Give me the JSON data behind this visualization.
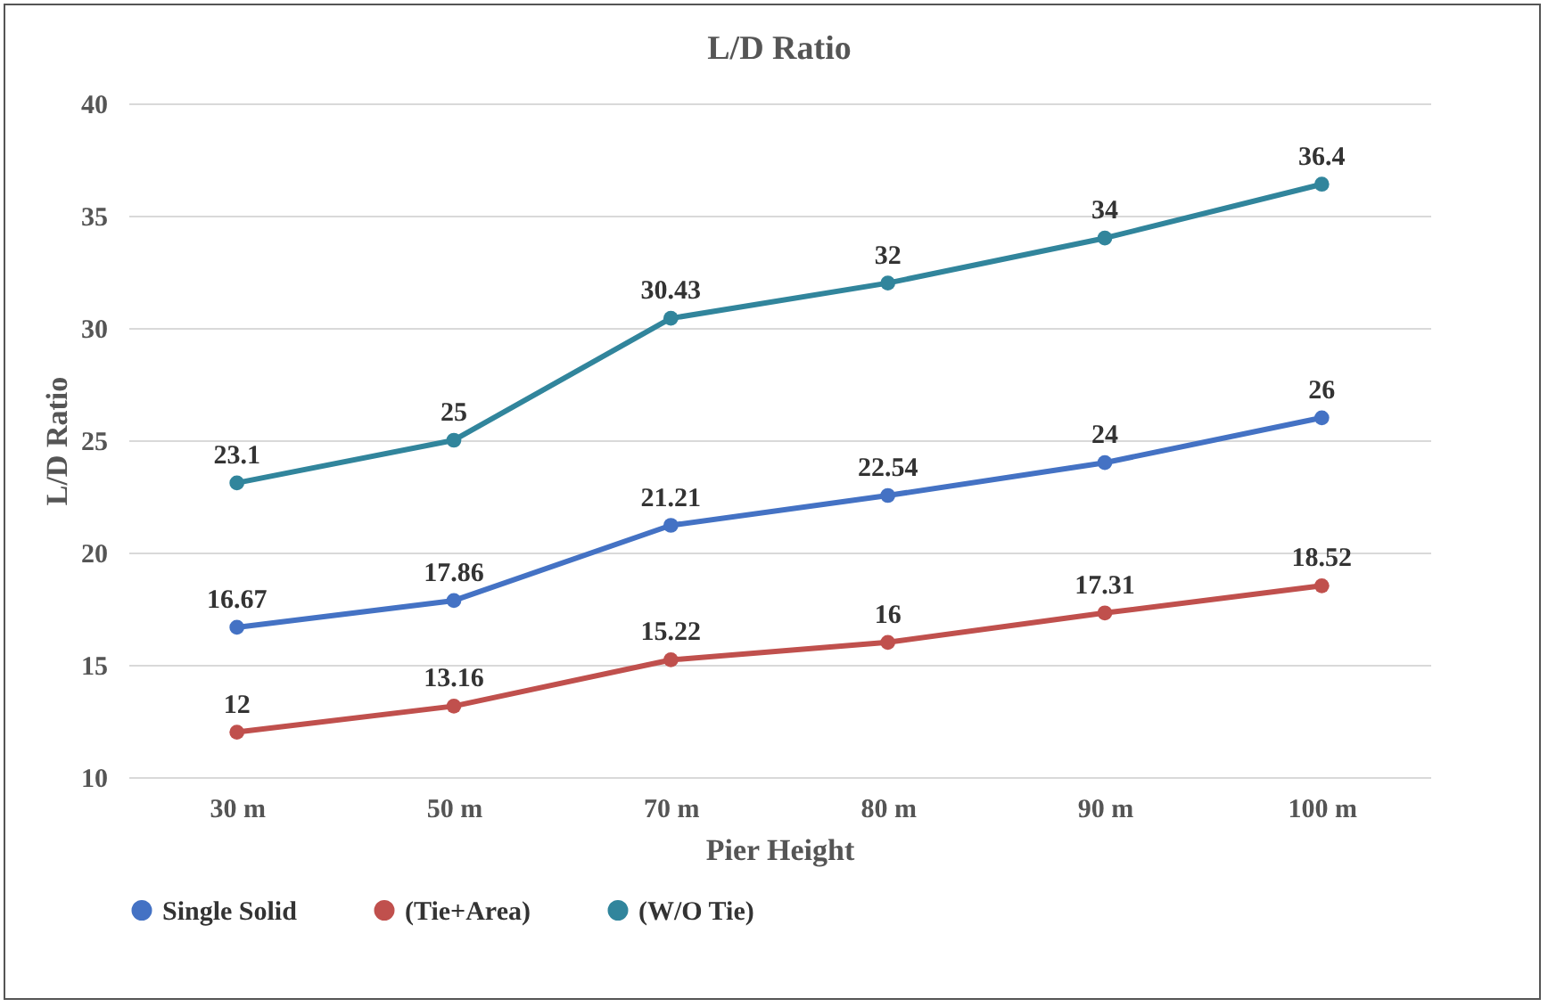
{
  "chart_data": {
    "type": "line",
    "title": "L/D Ratio",
    "xlabel": "Pier Height",
    "ylabel": "L/D Ratio",
    "categories": [
      "30 m",
      "50 m",
      "70 m",
      "80 m",
      "90 m",
      "100 m"
    ],
    "series": [
      {
        "name": "Single Solid",
        "color": "#4472c4",
        "values": [
          16.67,
          17.86,
          21.21,
          22.54,
          24,
          26
        ]
      },
      {
        "name": "(Tie+Area)",
        "color": "#c0504d",
        "values": [
          12,
          13.16,
          15.22,
          16,
          17.31,
          18.52
        ]
      },
      {
        "name": "(W/O Tie)",
        "color": "#31859c",
        "values": [
          23.1,
          25,
          30.43,
          32,
          34,
          36.4
        ]
      }
    ],
    "ylim": [
      10,
      40
    ],
    "yticks": [
      10,
      15,
      20,
      25,
      30,
      35,
      40
    ],
    "grid": "y",
    "legend": "bottom",
    "marker": "circle",
    "line_style": "solid",
    "data_labels": true
  }
}
